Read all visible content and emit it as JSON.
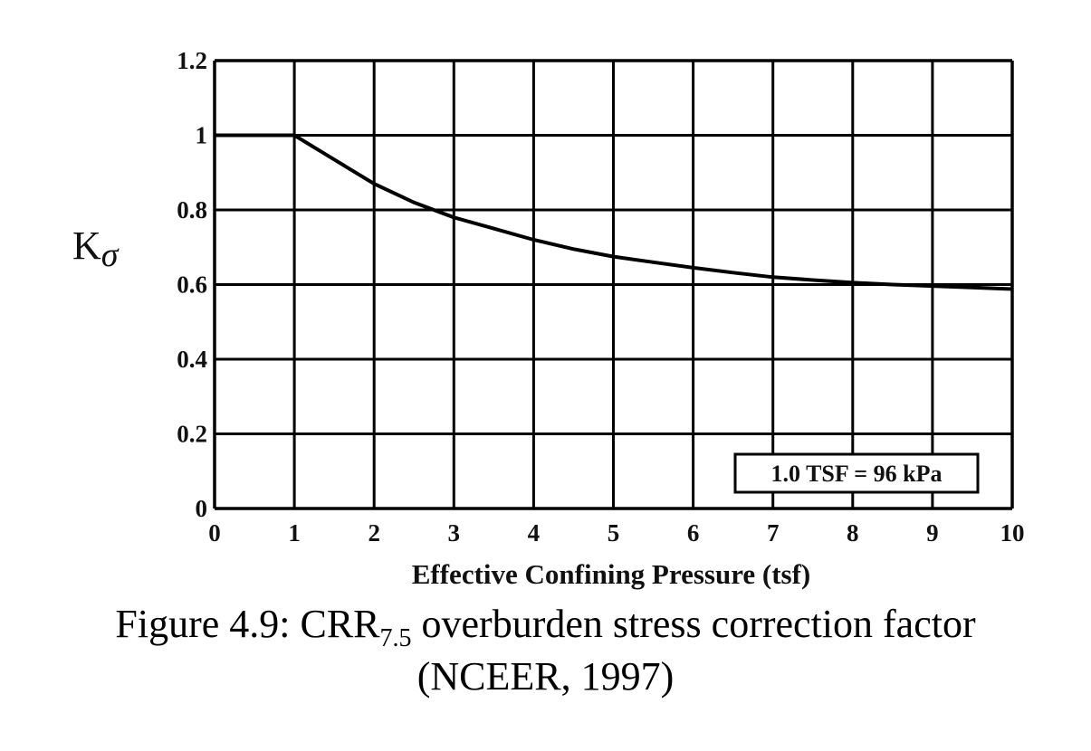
{
  "chart_data": {
    "type": "line",
    "title": "",
    "xlabel": "Effective Confining Pressure  (tsf)",
    "ylabel_main": "K",
    "ylabel_sub": "σ",
    "xlim": [
      0,
      10
    ],
    "ylim": [
      0,
      1.2
    ],
    "x_ticks": [
      "0",
      "1",
      "2",
      "3",
      "4",
      "5",
      "6",
      "7",
      "8",
      "9",
      "10"
    ],
    "y_ticks": [
      "0",
      "0.2",
      "0.4",
      "0.6",
      "0.8",
      "1",
      "1.2"
    ],
    "grid": true,
    "series": [
      {
        "x": [
          0,
          1,
          1.5,
          2,
          2.5,
          3,
          3.5,
          4,
          4.5,
          5,
          5.5,
          6,
          6.5,
          7,
          7.5,
          8,
          8.5,
          9,
          9.5,
          10
        ],
        "y": [
          1.0,
          1.0,
          0.935,
          0.87,
          0.82,
          0.78,
          0.75,
          0.72,
          0.695,
          0.675,
          0.66,
          0.645,
          0.632,
          0.62,
          0.612,
          0.605,
          0.6,
          0.596,
          0.592,
          0.588
        ]
      }
    ],
    "annotation": "1.0 TSF = 96 kPa"
  },
  "caption": {
    "prefix": "Figure 4.9: CRR",
    "subscript": "7.5",
    "suffix": " overburden stress correction factor",
    "line2": "(NCEER, 1997)"
  }
}
